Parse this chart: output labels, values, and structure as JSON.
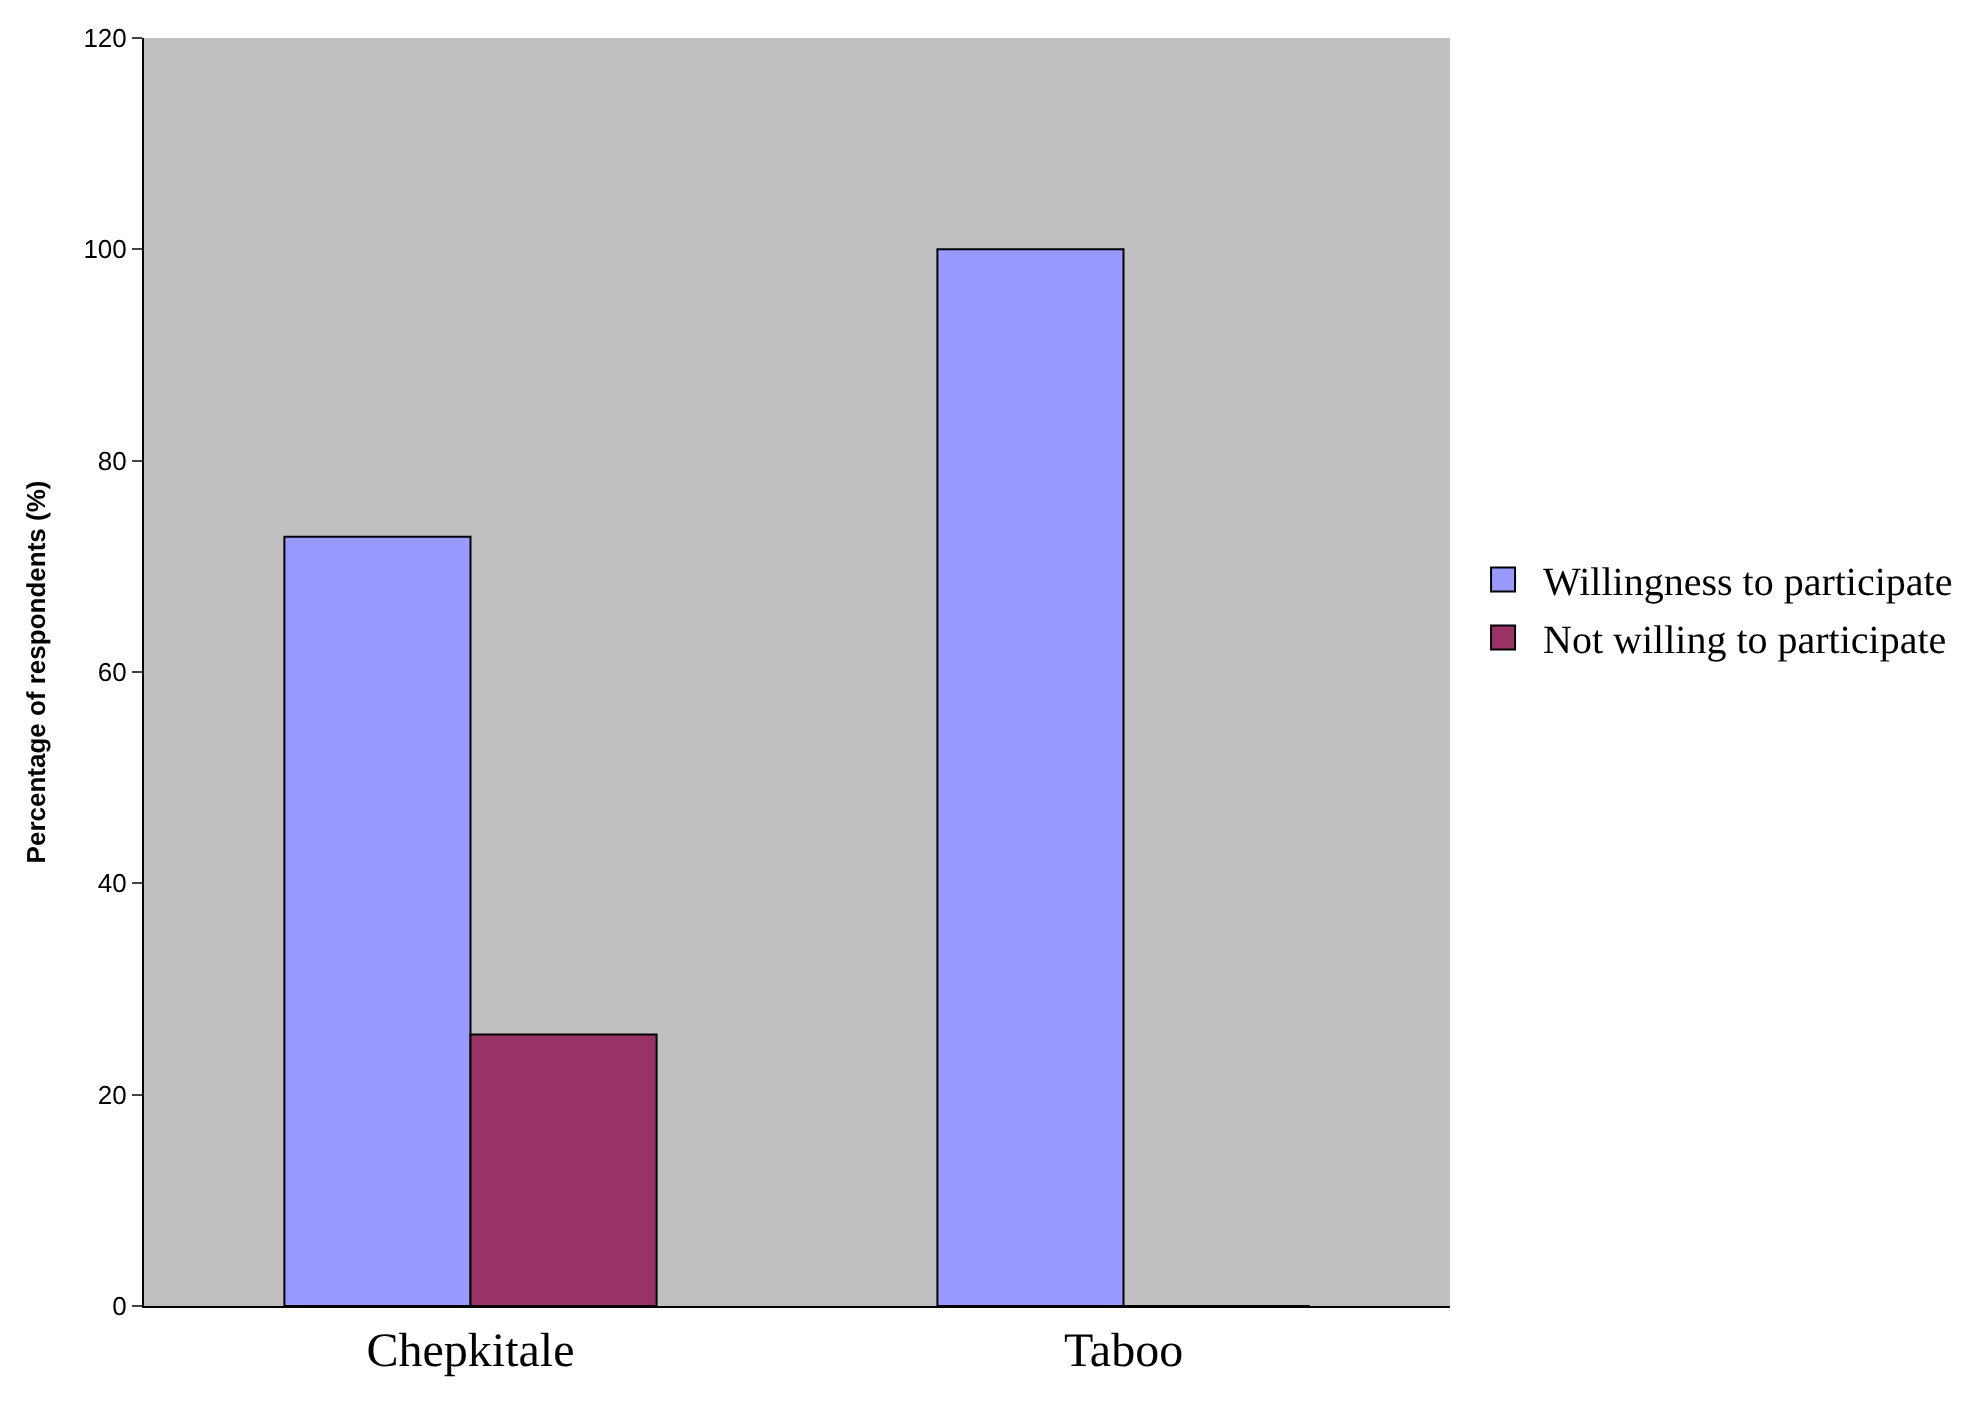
{
  "chart_data": {
    "type": "bar",
    "ylabel": "Percentage of respondents (%)",
    "categories": [
      "Chepkitale",
      "Taboo"
    ],
    "series": [
      {
        "name": "Willingness to participate",
        "color": "#9999ff",
        "values": [
          72.8,
          100
        ]
      },
      {
        "name": "Not willing to participate",
        "color": "#993366",
        "values": [
          25.7,
          0
        ]
      }
    ],
    "ylim": [
      0,
      120
    ],
    "yticks": [
      0,
      20,
      40,
      60,
      80,
      100,
      120
    ],
    "legend": "right"
  }
}
